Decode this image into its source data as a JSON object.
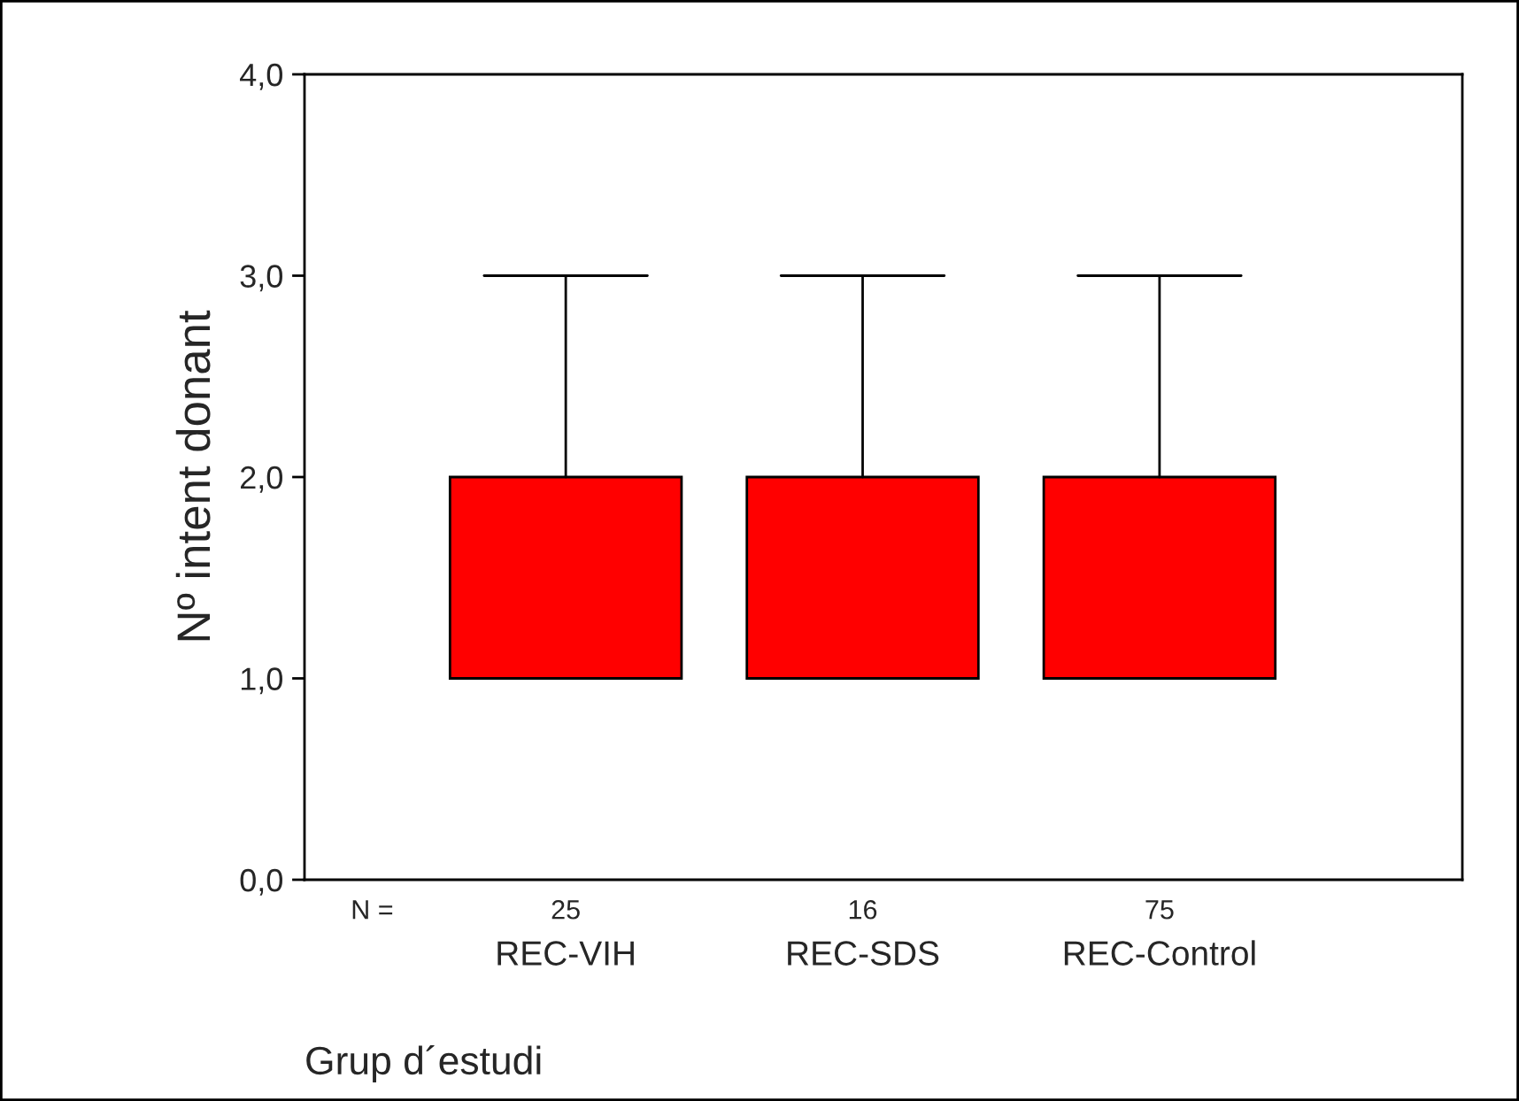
{
  "chart_data": {
    "type": "box",
    "xlabel": "Grup d´estudi",
    "ylabel": "Nº intent donant",
    "categories": [
      "REC-VIH",
      "REC-SDS",
      "REC-Control"
    ],
    "boxes": [
      {
        "low": 1,
        "q1": 1,
        "median": 1,
        "q3": 2,
        "high": 3
      },
      {
        "low": 1,
        "q1": 1,
        "median": 1,
        "q3": 2,
        "high": 3
      },
      {
        "low": 1,
        "q1": 1,
        "median": 1,
        "q3": 2,
        "high": 3
      }
    ],
    "color": "#ff0000",
    "ylim": [
      0,
      4
    ],
    "yticks": [
      {
        "value": 0,
        "label": "0,0"
      },
      {
        "value": 1,
        "label": "1,0"
      },
      {
        "value": 2,
        "label": "2,0"
      },
      {
        "value": 3,
        "label": "3,0"
      },
      {
        "value": 4,
        "label": "4,0"
      }
    ],
    "grid": false,
    "annotations": [
      "N =",
      "25",
      "16",
      "75"
    ]
  }
}
